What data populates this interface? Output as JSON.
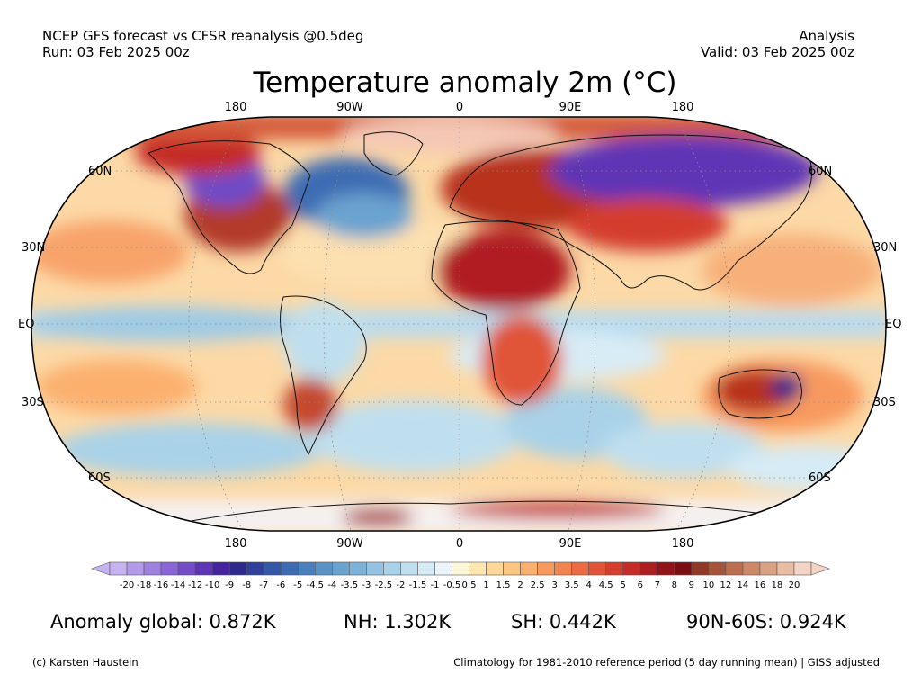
{
  "header": {
    "source_line": "NCEP GFS forecast vs CFSR reanalysis @0.5deg",
    "run_line": "Run: 03 Feb 2025 00z",
    "type_line": "Analysis",
    "valid_line": "Valid: 03 Feb 2025 00z"
  },
  "title": "Temperature anomaly 2m (°C)",
  "map": {
    "projection": "Robinson",
    "lon_labels_top": [
      "180",
      "90W",
      "0",
      "90E",
      "180"
    ],
    "lon_labels_bottom": [
      "180",
      "90W",
      "0",
      "90E",
      "180"
    ],
    "lat_labels_left": [
      "60N",
      "30N",
      "EQ",
      "30S",
      "60S"
    ],
    "lat_labels_right": [
      "60N",
      "30N",
      "EQ",
      "30S",
      "60S"
    ]
  },
  "colorbar": {
    "labels": [
      "-20",
      "-18",
      "-16",
      "-14",
      "-12",
      "-10",
      "-9",
      "-8",
      "-7",
      "-6",
      "-5",
      "-4.5",
      "-4",
      "-3.5",
      "-3",
      "-2.5",
      "-2",
      "-1.5",
      "-1",
      "-0.5",
      "0.5",
      "1",
      "1.5",
      "2",
      "2.5",
      "3",
      "3.5",
      "4",
      "4.5",
      "5",
      "6",
      "7",
      "8",
      "9",
      "10",
      "12",
      "14",
      "16",
      "18",
      "20"
    ],
    "colors": [
      "#c6b4f0",
      "#b29ae8",
      "#9e80df",
      "#8a66d6",
      "#744cc8",
      "#5e34b6",
      "#46229e",
      "#2e2a8c",
      "#303f99",
      "#3457a8",
      "#3d6cb3",
      "#4a80bd",
      "#5a92c6",
      "#6aa3cf",
      "#7db3d8",
      "#93c3e0",
      "#a9d2e8",
      "#bfdfef",
      "#d5ebf6",
      "#ebf4fa",
      "#fdf6d8",
      "#fee8b0",
      "#fdd898",
      "#fcc582",
      "#fbb06e",
      "#f89a5e",
      "#f3834f",
      "#ec6b42",
      "#e05538",
      "#d43e2f",
      "#c42c27",
      "#ac1e20",
      "#901419",
      "#7a0e12",
      "#8f3a28",
      "#a6553a",
      "#bb6f50",
      "#cc8968",
      "#daa284",
      "#e8bba3",
      "#f4d4c4"
    ]
  },
  "stats": {
    "global": "Anomaly global: 0.872K",
    "nh": "NH: 1.302K",
    "sh": "SH: 0.442K",
    "arctic": "90N-60S: 0.924K"
  },
  "footer": {
    "credit": "(c) Karsten Haustein",
    "note": "Climatology for 1981-2010 reference period (5 day running mean) | GISS adjusted"
  }
}
